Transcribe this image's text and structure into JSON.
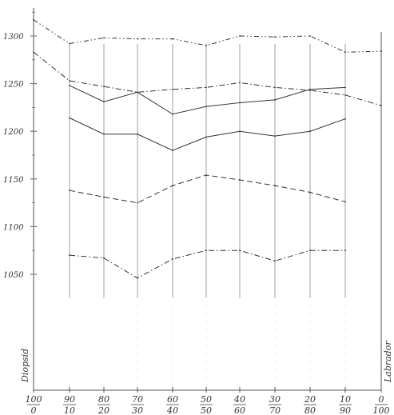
{
  "chart_data": {
    "type": "line",
    "xlabel": "",
    "ylabel": "",
    "left_label": "Diopsid",
    "right_label": "Labrador",
    "ylim": [
      1020,
      1320
    ],
    "y_ticks": [
      1300,
      1250,
      1200,
      1150,
      1100,
      1050
    ],
    "y_tick_labels": [
      "1300",
      "1250",
      "1200",
      "1150",
      "1100",
      "1050"
    ],
    "x": [
      0,
      10,
      20,
      30,
      40,
      50,
      60,
      70,
      80,
      90,
      100
    ],
    "x_tick_labels": [
      {
        "top": "100",
        "bottom": "0"
      },
      {
        "top": "90",
        "bottom": "10"
      },
      {
        "top": "80",
        "bottom": "20"
      },
      {
        "top": "70",
        "bottom": "30"
      },
      {
        "top": "60",
        "bottom": "40"
      },
      {
        "top": "50",
        "bottom": "50"
      },
      {
        "top": "40",
        "bottom": "60"
      },
      {
        "top": "30",
        "bottom": "70"
      },
      {
        "top": "20",
        "bottom": "80"
      },
      {
        "top": "10",
        "bottom": "90"
      },
      {
        "top": "0",
        "bottom": "100"
      }
    ],
    "series": [
      {
        "style": "dash-dot-dot",
        "points": [
          [
            0,
            1317
          ],
          [
            10,
            1292
          ],
          [
            20,
            1298
          ],
          [
            30,
            1297
          ],
          [
            40,
            1297
          ],
          [
            50,
            1290
          ],
          [
            60,
            1300
          ],
          [
            70,
            1299
          ],
          [
            80,
            1300
          ],
          [
            90,
            1283
          ],
          [
            100,
            1284
          ]
        ]
      },
      {
        "style": "dash-dot",
        "points": [
          [
            0,
            1283
          ],
          [
            10,
            1253
          ],
          [
            20,
            1247
          ],
          [
            30,
            1241
          ],
          [
            40,
            1244
          ],
          [
            50,
            1246
          ],
          [
            60,
            1251
          ],
          [
            70,
            1246
          ],
          [
            80,
            1243
          ],
          [
            90,
            1238
          ],
          [
            100,
            1227
          ]
        ]
      },
      {
        "style": "solid",
        "points": [
          [
            10,
            1248
          ],
          [
            20,
            1231
          ],
          [
            30,
            1241
          ],
          [
            40,
            1218
          ],
          [
            50,
            1226
          ],
          [
            60,
            1230
          ],
          [
            70,
            1233
          ],
          [
            80,
            1244
          ],
          [
            90,
            1246
          ]
        ]
      },
      {
        "style": "solid",
        "points": [
          [
            10,
            1214
          ],
          [
            20,
            1197
          ],
          [
            30,
            1197
          ],
          [
            40,
            1180
          ],
          [
            50,
            1194
          ],
          [
            60,
            1200
          ],
          [
            70,
            1195
          ],
          [
            80,
            1200
          ],
          [
            90,
            1213
          ]
        ]
      },
      {
        "style": "dashed",
        "points": [
          [
            10,
            1138
          ],
          [
            20,
            1131
          ],
          [
            30,
            1125
          ],
          [
            40,
            1143
          ],
          [
            50,
            1154
          ],
          [
            60,
            1149
          ],
          [
            70,
            1143
          ],
          [
            80,
            1136
          ],
          [
            90,
            1126
          ]
        ]
      },
      {
        "style": "dash-dot",
        "points": [
          [
            10,
            1070
          ],
          [
            20,
            1067
          ],
          [
            30,
            1046
          ],
          [
            40,
            1066
          ],
          [
            50,
            1075
          ],
          [
            60,
            1075
          ],
          [
            70,
            1064
          ],
          [
            80,
            1075
          ],
          [
            90,
            1075
          ]
        ]
      }
    ]
  }
}
